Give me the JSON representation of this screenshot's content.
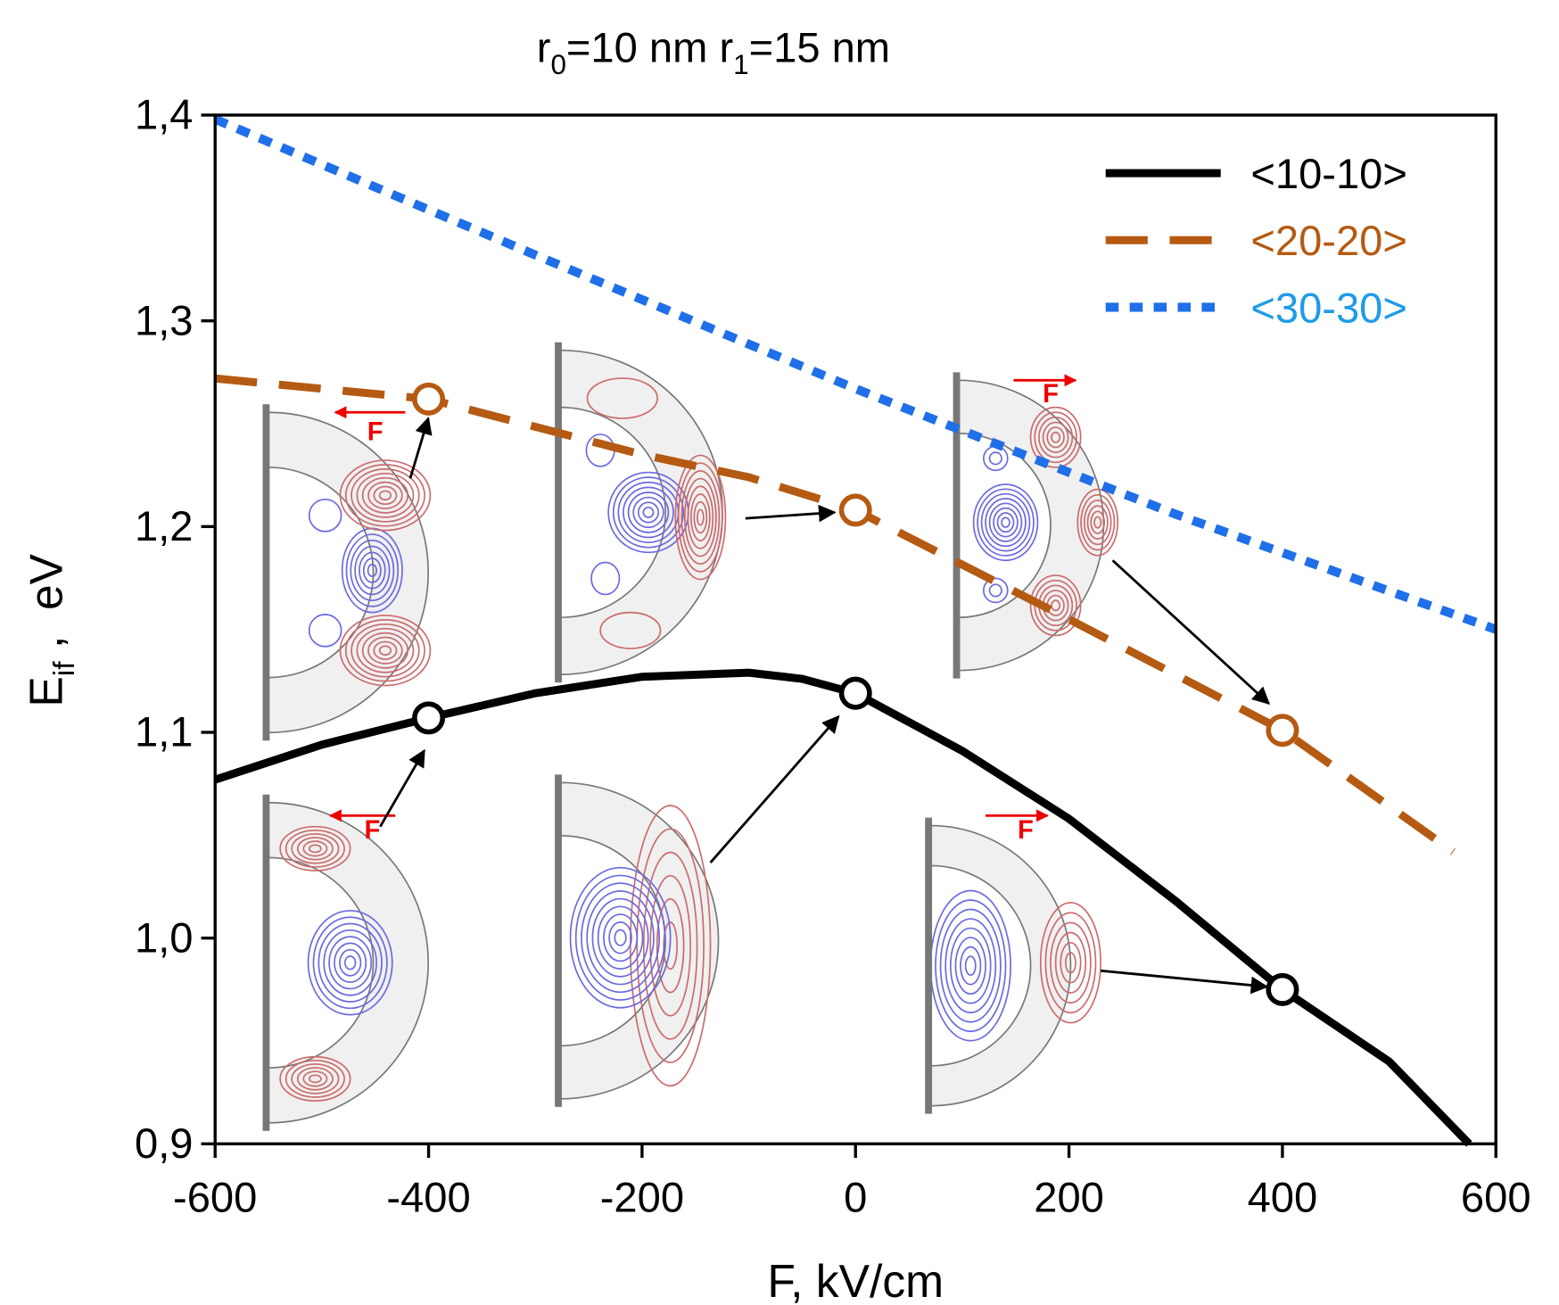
{
  "chart_data": {
    "type": "line",
    "title_parts": [
      "r",
      "0",
      "=10 nm  r",
      "1",
      "=15 nm"
    ],
    "y_label_parts": [
      "E",
      "if",
      " ,  eV"
    ],
    "x_label": "F, kV/cm",
    "xlim": [
      -600,
      600
    ],
    "xticks": [
      -600,
      -400,
      -200,
      0,
      200,
      400,
      600
    ],
    "ylim": [
      0.9,
      1.4
    ],
    "yticks": [
      {
        "value": 0.9,
        "label": "0,9"
      },
      {
        "value": 1.0,
        "label": "1,0"
      },
      {
        "value": 1.1,
        "label": "1,1"
      },
      {
        "value": 1.2,
        "label": "1,2"
      },
      {
        "value": 1.3,
        "label": "1,3"
      },
      {
        "value": 1.4,
        "label": "1,4"
      }
    ],
    "legend": "upper right",
    "highlighted_x": [
      -400,
      0,
      400
    ],
    "field_labels": [
      "F",
      "F",
      "F",
      "F"
    ],
    "series": [
      {
        "name": "<10-10>",
        "color": "#000000",
        "legend_color": "#000000",
        "style": "solid",
        "x": [
          -600,
          -500,
          -400,
          -300,
          -200,
          -100,
          -50,
          0,
          100,
          200,
          300,
          400,
          500,
          575
        ],
        "values": [
          1.077,
          1.094,
          1.107,
          1.119,
          1.127,
          1.129,
          1.126,
          1.119,
          1.091,
          1.058,
          1.018,
          0.975,
          0.94,
          0.9
        ]
      },
      {
        "name": "<20-20>",
        "color": "#b55a12",
        "legend_color": "#b55a12",
        "style": "dashed",
        "x": [
          -600,
          -400,
          -200,
          -100,
          0,
          200,
          400,
          560
        ],
        "values": [
          1.272,
          1.262,
          1.235,
          1.224,
          1.208,
          1.155,
          1.101,
          1.042
        ]
      },
      {
        "name": "<30-30>",
        "color": "#1f6fe8",
        "legend_color": "#1e9be8",
        "style": "dotted",
        "x": [
          -600,
          -300,
          0,
          300,
          600
        ],
        "values": [
          1.398,
          1.332,
          1.267,
          1.206,
          1.15
        ]
      }
    ]
  }
}
